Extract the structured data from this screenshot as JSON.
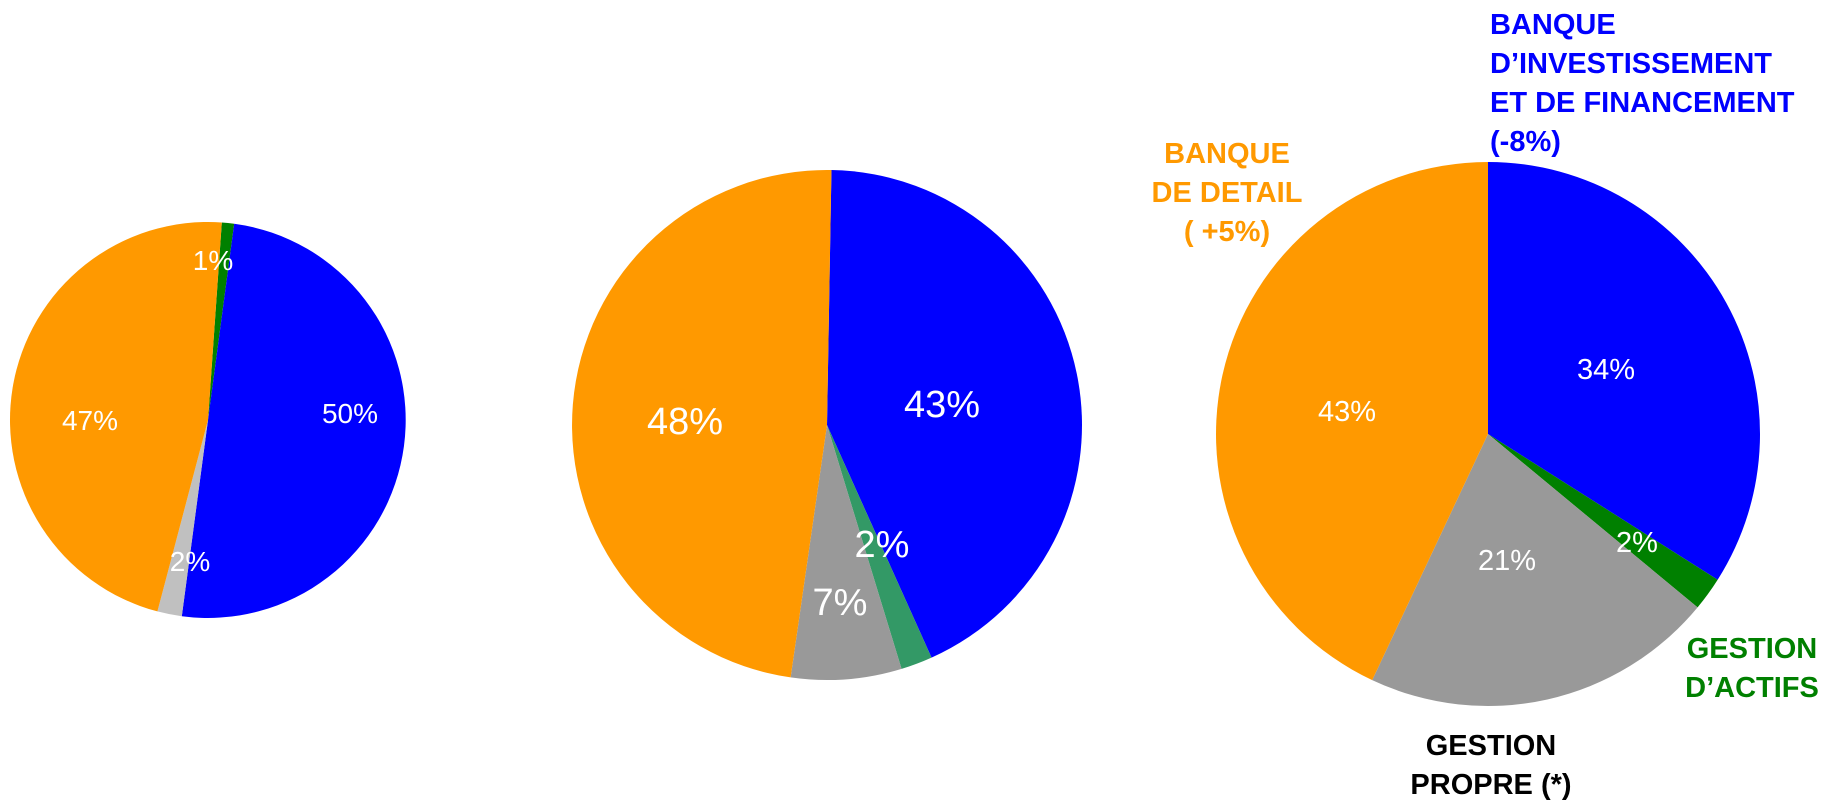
{
  "colors": {
    "banque_de_detail": "#FF9900",
    "banque_investissement": "#0000FF",
    "gestion_actifs": "#008000",
    "gestion_actifs_2": "#339966",
    "gestion_propre": "#999999",
    "gestion_propre_light": "#C0C0C0",
    "label_text": "#FFFFFF",
    "gestion_propre_text": "#000000"
  },
  "chart_data": [
    {
      "type": "pie",
      "slices": [
        {
          "key": "gestion_actifs",
          "value": 1,
          "label": "1%"
        },
        {
          "key": "banque_investissement",
          "value": 50,
          "label": "50%"
        },
        {
          "key": "gestion_propre",
          "value": 2,
          "label": "2%"
        },
        {
          "key": "banque_de_detail",
          "value": 47,
          "label": "47%"
        }
      ]
    },
    {
      "type": "pie",
      "slices": [
        {
          "key": "banque_investissement",
          "value": 43,
          "label": "43%"
        },
        {
          "key": "gestion_actifs",
          "value": 2,
          "label": "2%"
        },
        {
          "key": "gestion_propre",
          "value": 7,
          "label": "7%"
        },
        {
          "key": "banque_de_detail",
          "value": 48,
          "label": "48%"
        }
      ]
    },
    {
      "type": "pie",
      "slices": [
        {
          "key": "banque_investissement",
          "value": 34,
          "label": "34%"
        },
        {
          "key": "gestion_actifs",
          "value": 2,
          "label": "2%"
        },
        {
          "key": "gestion_propre",
          "value": 21,
          "label": "21%"
        },
        {
          "key": "banque_de_detail",
          "value": 43,
          "label": "43%"
        }
      ]
    }
  ],
  "category_labels": {
    "banque_investissement": {
      "lines": [
        "BANQUE",
        "D’INVESTISSEMENT",
        "ET DE FINANCEMENT",
        "(-8%)"
      ]
    },
    "banque_de_detail": {
      "lines": [
        "BANQUE",
        "DE DETAIL",
        "( +5%)"
      ]
    },
    "gestion_actifs": {
      "lines": [
        "GESTION",
        "D’ACTIFS"
      ]
    },
    "gestion_propre": {
      "lines": [
        "GESTION",
        "PROPRE (*)"
      ]
    }
  }
}
